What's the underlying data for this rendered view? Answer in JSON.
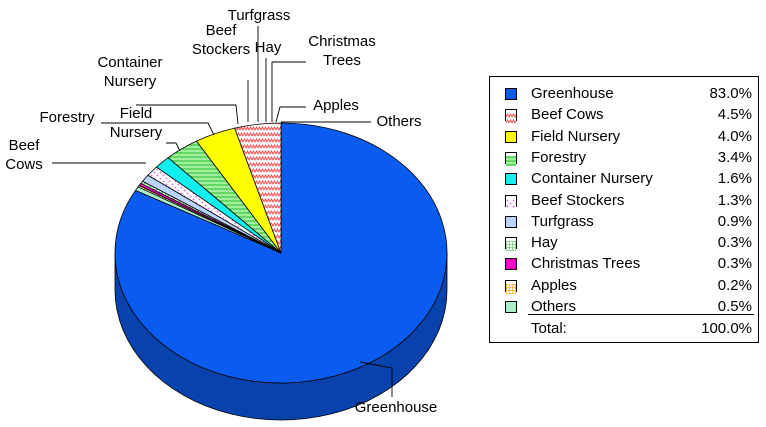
{
  "chart_data": {
    "type": "pie",
    "three_d": true,
    "title": "",
    "start_angle_deg": 90,
    "direction": "clockwise",
    "slices": [
      {
        "label": "Greenhouse",
        "legend_label": "Greenhouse",
        "value": 83.0,
        "value_text": "83.0%",
        "color": "#0a5cf0",
        "pattern": "solid"
      },
      {
        "label": "Others",
        "legend_label": "Others",
        "value": 0.5,
        "value_text": "0.5%",
        "color": "#a9f0c8",
        "pattern": "solid"
      },
      {
        "label": "Apples",
        "legend_label": "Apples",
        "value": 0.2,
        "value_text": "0.2%",
        "color": "#ffb020",
        "pattern": "grid"
      },
      {
        "label": "Christmas Trees",
        "legend_label": "Christmas Trees",
        "value": 0.3,
        "value_text": "0.3%",
        "color": "#ff00c8",
        "pattern": "solid"
      },
      {
        "label": "Hay",
        "legend_label": "Hay",
        "value": 0.3,
        "value_text": "0.3%",
        "color": "#7ad07a",
        "pattern": "grid"
      },
      {
        "label": "Turfgrass",
        "legend_label": "Turfgrass",
        "value": 0.9,
        "value_text": "0.9%",
        "color": "#b8d4ff",
        "pattern": "solid"
      },
      {
        "label": "Beef Stockers",
        "legend_label": "Beef Stockers",
        "value": 1.3,
        "value_text": "1.3%",
        "color": "#e060e0",
        "pattern": "dots"
      },
      {
        "label": "Container Nursery",
        "legend_label": "Container Nursery",
        "value": 1.6,
        "value_text": "1.6%",
        "color": "#10f0f0",
        "pattern": "solid"
      },
      {
        "label": "Forestry",
        "legend_label": "Forestry",
        "value": 3.4,
        "value_text": "3.4%",
        "color": "#2dbb2d",
        "pattern": "lines"
      },
      {
        "label": "Field Nursery",
        "legend_label": "Field Nursery",
        "value": 4.0,
        "value_text": "4.0%",
        "color": "#ffff00",
        "pattern": "solid"
      },
      {
        "label": "Beef Cows",
        "legend_label": "Beef Cows",
        "value": 4.5,
        "value_text": "4.5%",
        "color": "#ff4040",
        "pattern": "zigzag"
      }
    ],
    "callout_labels": [
      {
        "slice": "Greenhouse",
        "lines": [
          "Greenhouse"
        ]
      },
      {
        "slice": "Beef Cows",
        "lines": [
          "Beef",
          "Cows"
        ]
      },
      {
        "slice": "Field Nursery",
        "lines": [
          "Field",
          "Nursery"
        ]
      },
      {
        "slice": "Forestry",
        "lines": [
          "Forestry"
        ]
      },
      {
        "slice": "Container Nursery",
        "lines": [
          "Container",
          "Nursery"
        ]
      },
      {
        "slice": "Beef Stockers",
        "lines": [
          "Beef",
          "Stockers"
        ]
      },
      {
        "slice": "Turfgrass",
        "lines": [
          "Turfgrass"
        ]
      },
      {
        "slice": "Hay",
        "lines": [
          "Hay"
        ]
      },
      {
        "slice": "Christmas Trees",
        "lines": [
          "Christmas",
          "Trees"
        ]
      },
      {
        "slice": "Apples",
        "lines": [
          "Apples"
        ]
      },
      {
        "slice": "Others",
        "lines": [
          "Others"
        ]
      }
    ],
    "legend": {
      "placement": "right",
      "order": [
        "Greenhouse",
        "Beef Cows",
        "Field Nursery",
        "Forestry",
        "Container Nursery",
        "Beef Stockers",
        "Turfgrass",
        "Hay",
        "Christmas Trees",
        "Apples",
        "Others"
      ],
      "total_label": "Total:",
      "total_value": "100.0%"
    }
  }
}
